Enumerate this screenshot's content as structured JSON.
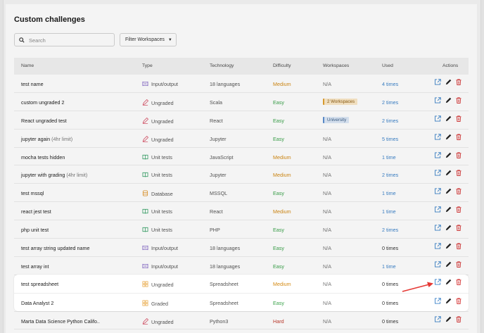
{
  "page": {
    "title": "Custom challenges"
  },
  "search": {
    "placeholder": "Search"
  },
  "filter": {
    "label": "Filter Workspaces"
  },
  "columns": {
    "name": "Name",
    "type": "Type",
    "technology": "Technology",
    "difficulty": "Difficulty",
    "workspaces": "Workspaces",
    "used": "Used",
    "actions": "Actions"
  },
  "colors": {
    "medium": "#d48a13",
    "easy": "#3aa34a",
    "hard": "#c0392b",
    "link": "#3b82c9",
    "delete": "#d63b3b"
  },
  "rows": [
    {
      "name": "test name",
      "note": "",
      "type": "Input/output",
      "type_icon": "io-icon",
      "technology": "18 languages",
      "difficulty": "Medium",
      "workspaces": "N/A",
      "used": "4 times"
    },
    {
      "name": "custom ungraded 2",
      "note": "",
      "type": "Ungraded",
      "type_icon": "pencil-icon",
      "technology": "Scala",
      "difficulty": "Easy",
      "workspaces": "2 Workspaces",
      "used": "2 times"
    },
    {
      "name": "React ungraded test",
      "note": "",
      "type": "Ungraded",
      "type_icon": "pencil-icon",
      "technology": "React",
      "difficulty": "Easy",
      "workspaces": "University",
      "used": "2 times"
    },
    {
      "name": "jupyter again",
      "note": "(4hr limit)",
      "type": "Ungraded",
      "type_icon": "pencil-icon",
      "technology": "Jupyter",
      "difficulty": "Easy",
      "workspaces": "N/A",
      "used": "5 times"
    },
    {
      "name": "mocha tests hidden",
      "note": "",
      "type": "Unit tests",
      "type_icon": "book-icon",
      "technology": "JavaScript",
      "difficulty": "Medium",
      "workspaces": "N/A",
      "used": "1 time"
    },
    {
      "name": "jupyter with grading",
      "note": "(4hr limit)",
      "type": "Unit tests",
      "type_icon": "book-icon",
      "technology": "Jupyter",
      "difficulty": "Medium",
      "workspaces": "N/A",
      "used": "2 times"
    },
    {
      "name": "test mssql",
      "note": "",
      "type": "Database",
      "type_icon": "database-icon",
      "technology": "MSSQL",
      "difficulty": "Easy",
      "workspaces": "N/A",
      "used": "1 time"
    },
    {
      "name": "react jest test",
      "note": "",
      "type": "Unit tests",
      "type_icon": "book-icon",
      "technology": "React",
      "difficulty": "Medium",
      "workspaces": "N/A",
      "used": "1 time"
    },
    {
      "name": "php unit test",
      "note": "",
      "type": "Unit tests",
      "type_icon": "book-icon",
      "technology": "PHP",
      "difficulty": "Easy",
      "workspaces": "N/A",
      "used": "2 times"
    },
    {
      "name": "test array string updated name",
      "note": "",
      "type": "Input/output",
      "type_icon": "io-icon",
      "technology": "18 languages",
      "difficulty": "Easy",
      "workspaces": "N/A",
      "used": "0 times"
    },
    {
      "name": "test array int",
      "note": "",
      "type": "Input/output",
      "type_icon": "io-icon",
      "technology": "18 languages",
      "difficulty": "Easy",
      "workspaces": "N/A",
      "used": "1 time"
    },
    {
      "name": "test spreadsheet",
      "note": "",
      "type": "Ungraded",
      "type_icon": "grid-icon",
      "technology": "Spreadsheet",
      "difficulty": "Medium",
      "workspaces": "N/A",
      "used": "0 times"
    },
    {
      "name": "Data Analyst 2",
      "note": "",
      "type": "Graded",
      "type_icon": "grid-icon",
      "technology": "Spreadsheet",
      "difficulty": "Easy",
      "workspaces": "N/A",
      "used": "0 times"
    },
    {
      "name": "Marta Data Science Python Califo..",
      "note": "",
      "type": "Ungraded",
      "type_icon": "pencil-icon",
      "technology": "Python3",
      "difficulty": "Hard",
      "workspaces": "N/A",
      "used": "0 times"
    }
  ]
}
